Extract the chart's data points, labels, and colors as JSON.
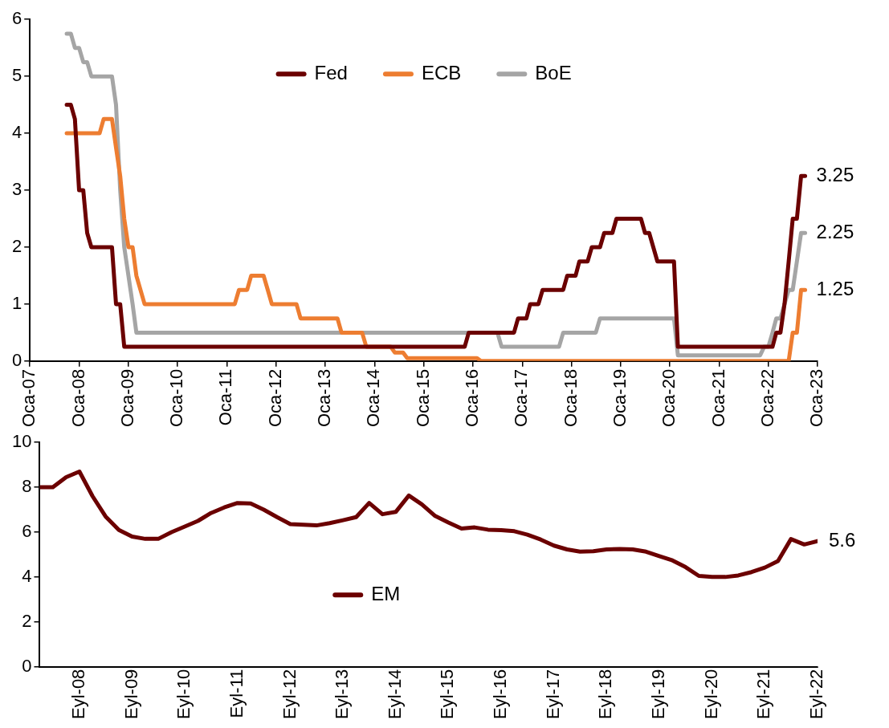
{
  "chart_data": [
    {
      "type": "line",
      "legend": "top",
      "xlim": [
        "2007-01",
        "2023-01"
      ],
      "xticks": [
        {
          "value": "2007-01",
          "label": "Oca-07"
        },
        {
          "value": "2008-01",
          "label": "Oca-08"
        },
        {
          "value": "2009-01",
          "label": "Oca-09"
        },
        {
          "value": "2010-01",
          "label": "Oca-10"
        },
        {
          "value": "2011-01",
          "label": "Oca-11"
        },
        {
          "value": "2012-01",
          "label": "Oca-12"
        },
        {
          "value": "2013-01",
          "label": "Oca-13"
        },
        {
          "value": "2014-01",
          "label": "Oca-14"
        },
        {
          "value": "2015-01",
          "label": "Oca-15"
        },
        {
          "value": "2016-01",
          "label": "Oca-16"
        },
        {
          "value": "2017-01",
          "label": "Oca-17"
        },
        {
          "value": "2018-01",
          "label": "Oca-18"
        },
        {
          "value": "2019-01",
          "label": "Oca-19"
        },
        {
          "value": "2020-01",
          "label": "Oca-20"
        },
        {
          "value": "2021-01",
          "label": "Oca-21"
        },
        {
          "value": "2022-01",
          "label": "Oca-22"
        },
        {
          "value": "2023-01",
          "label": "Oca-23"
        }
      ],
      "ylim": [
        0,
        6
      ],
      "yticks": [
        0,
        1,
        2,
        3,
        4,
        5,
        6
      ],
      "series": [
        {
          "name": "Fed",
          "color": "#6b0000",
          "x": [
            "2007-10",
            "2007-11",
            "2007-12",
            "2008-01",
            "2008-02",
            "2008-03",
            "2008-04",
            "2008-09",
            "2008-10",
            "2008-11",
            "2008-12",
            "2015-11",
            "2015-12",
            "2016-11",
            "2016-12",
            "2017-02",
            "2017-03",
            "2017-05",
            "2017-06",
            "2017-11",
            "2017-12",
            "2018-02",
            "2018-03",
            "2018-05",
            "2018-06",
            "2018-08",
            "2018-09",
            "2018-11",
            "2018-12",
            "2019-06",
            "2019-07",
            "2019-08",
            "2019-10",
            "2020-02",
            "2020-03",
            "2022-02",
            "2022-03",
            "2022-04",
            "2022-05",
            "2022-06",
            "2022-07",
            "2022-08",
            "2022-09",
            "2022-10"
          ],
          "values": [
            4.5,
            4.5,
            4.25,
            3.0,
            3.0,
            2.25,
            2.0,
            2.0,
            1.0,
            1.0,
            0.25,
            0.25,
            0.5,
            0.5,
            0.75,
            0.75,
            1.0,
            1.0,
            1.25,
            1.25,
            1.5,
            1.5,
            1.75,
            1.75,
            2.0,
            2.0,
            2.25,
            2.25,
            2.5,
            2.5,
            2.25,
            2.25,
            1.75,
            1.75,
            0.25,
            0.25,
            0.5,
            0.5,
            1.0,
            1.75,
            2.5,
            2.5,
            3.25,
            3.25
          ]
        },
        {
          "name": "ECB",
          "color": "#ed7d31",
          "x": [
            "2007-10",
            "2008-06",
            "2008-07",
            "2008-09",
            "2008-10",
            "2008-11",
            "2008-12",
            "2009-01",
            "2009-02",
            "2009-03",
            "2009-05",
            "2011-03",
            "2011-04",
            "2011-06",
            "2011-07",
            "2011-10",
            "2011-11",
            "2011-12",
            "2012-06",
            "2012-07",
            "2013-04",
            "2013-05",
            "2013-10",
            "2013-11",
            "2014-05",
            "2014-06",
            "2014-08",
            "2014-09",
            "2016-02",
            "2016-03",
            "2022-06",
            "2022-07",
            "2022-08",
            "2022-09",
            "2022-10"
          ],
          "values": [
            4.0,
            4.0,
            4.25,
            4.25,
            3.75,
            3.25,
            2.5,
            2.0,
            2.0,
            1.5,
            1.0,
            1.0,
            1.25,
            1.25,
            1.5,
            1.5,
            1.25,
            1.0,
            1.0,
            0.75,
            0.75,
            0.5,
            0.5,
            0.25,
            0.25,
            0.15,
            0.15,
            0.05,
            0.05,
            0,
            0,
            0.5,
            0.5,
            1.25,
            1.25
          ]
        },
        {
          "name": "BoE",
          "color": "#a5a5a5",
          "x": [
            "2007-10",
            "2007-11",
            "2007-12",
            "2008-01",
            "2008-02",
            "2008-03",
            "2008-04",
            "2008-09",
            "2008-10",
            "2008-11",
            "2008-12",
            "2009-01",
            "2009-02",
            "2009-03",
            "2016-07",
            "2016-08",
            "2017-10",
            "2017-11",
            "2018-07",
            "2018-08",
            "2020-02",
            "2020-03",
            "2021-11",
            "2021-12",
            "2022-01",
            "2022-02",
            "2022-03",
            "2022-04",
            "2022-05",
            "2022-06",
            "2022-07",
            "2022-08",
            "2022-09",
            "2022-10"
          ],
          "values": [
            5.75,
            5.75,
            5.5,
            5.5,
            5.25,
            5.25,
            5.0,
            5.0,
            4.5,
            3.0,
            2.0,
            1.5,
            1.0,
            0.5,
            0.5,
            0.25,
            0.25,
            0.5,
            0.5,
            0.75,
            0.75,
            0.1,
            0.1,
            0.25,
            0.25,
            0.5,
            0.75,
            0.75,
            1.0,
            1.25,
            1.25,
            1.75,
            2.25,
            2.25
          ]
        }
      ],
      "annotations": [
        {
          "text": "3.25",
          "x": "2022-10",
          "y": 3.25
        },
        {
          "text": "2.25",
          "x": "2022-10",
          "y": 2.25
        },
        {
          "text": "1.25",
          "x": "2022-10",
          "y": 1.25
        }
      ]
    },
    {
      "type": "line",
      "legend": "bottom",
      "xlim": [
        "2007-12",
        "2022-09"
      ],
      "xticks": [
        {
          "value": "2008-09",
          "label": "Eyl-08"
        },
        {
          "value": "2009-09",
          "label": "Eyl-09"
        },
        {
          "value": "2010-09",
          "label": "Eyl-10"
        },
        {
          "value": "2011-09",
          "label": "Eyl-11"
        },
        {
          "value": "2012-09",
          "label": "Eyl-12"
        },
        {
          "value": "2013-09",
          "label": "Eyl-13"
        },
        {
          "value": "2014-09",
          "label": "Eyl-14"
        },
        {
          "value": "2015-09",
          "label": "Eyl-15"
        },
        {
          "value": "2016-09",
          "label": "Eyl-16"
        },
        {
          "value": "2017-09",
          "label": "Eyl-17"
        },
        {
          "value": "2018-09",
          "label": "Eyl-18"
        },
        {
          "value": "2019-09",
          "label": "Eyl-19"
        },
        {
          "value": "2020-09",
          "label": "Eyl-20"
        },
        {
          "value": "2021-09",
          "label": "Eyl-21"
        },
        {
          "value": "2022-09",
          "label": "Eyl-22"
        }
      ],
      "ylim": [
        0,
        10
      ],
      "yticks": [
        0,
        2,
        4,
        6,
        8,
        10
      ],
      "series": [
        {
          "name": "EM",
          "color": "#6b0000",
          "x": [
            "2007-12",
            "2008-03",
            "2008-06",
            "2008-09",
            "2008-12",
            "2009-03",
            "2009-06",
            "2009-09",
            "2009-12",
            "2010-03",
            "2010-06",
            "2010-09",
            "2010-12",
            "2011-03",
            "2011-06",
            "2011-09",
            "2011-12",
            "2012-03",
            "2012-06",
            "2012-09",
            "2012-12",
            "2013-03",
            "2013-06",
            "2013-09",
            "2013-12",
            "2014-03",
            "2014-06",
            "2014-09",
            "2014-12",
            "2015-03",
            "2015-06",
            "2015-09",
            "2015-12",
            "2016-03",
            "2016-06",
            "2016-09",
            "2016-12",
            "2017-03",
            "2017-06",
            "2017-09",
            "2017-12",
            "2018-03",
            "2018-06",
            "2018-09",
            "2018-12",
            "2019-03",
            "2019-06",
            "2019-09",
            "2019-12",
            "2020-03",
            "2020-06",
            "2020-09",
            "2020-12",
            "2021-03",
            "2021-06",
            "2021-09",
            "2021-12",
            "2022-03",
            "2022-06",
            "2022-09"
          ],
          "values": [
            8.0,
            8.0,
            8.45,
            8.7,
            7.6,
            6.7,
            6.1,
            5.8,
            5.7,
            5.7,
            6.0,
            6.25,
            6.5,
            6.85,
            7.1,
            7.3,
            7.28,
            7.0,
            6.67,
            6.36,
            6.33,
            6.3,
            6.4,
            6.53,
            6.67,
            7.3,
            6.8,
            6.9,
            7.63,
            7.24,
            6.72,
            6.43,
            6.16,
            6.21,
            6.11,
            6.09,
            6.04,
            5.89,
            5.67,
            5.4,
            5.23,
            5.13,
            5.15,
            5.23,
            5.25,
            5.23,
            5.13,
            4.93,
            4.74,
            4.44,
            4.05,
            4.0,
            4.0,
            4.07,
            4.22,
            4.42,
            4.71,
            5.69,
            5.45,
            5.6
          ]
        }
      ],
      "annotations": [
        {
          "text": "5.6",
          "x": "2022-09",
          "y": 5.6
        }
      ]
    }
  ]
}
